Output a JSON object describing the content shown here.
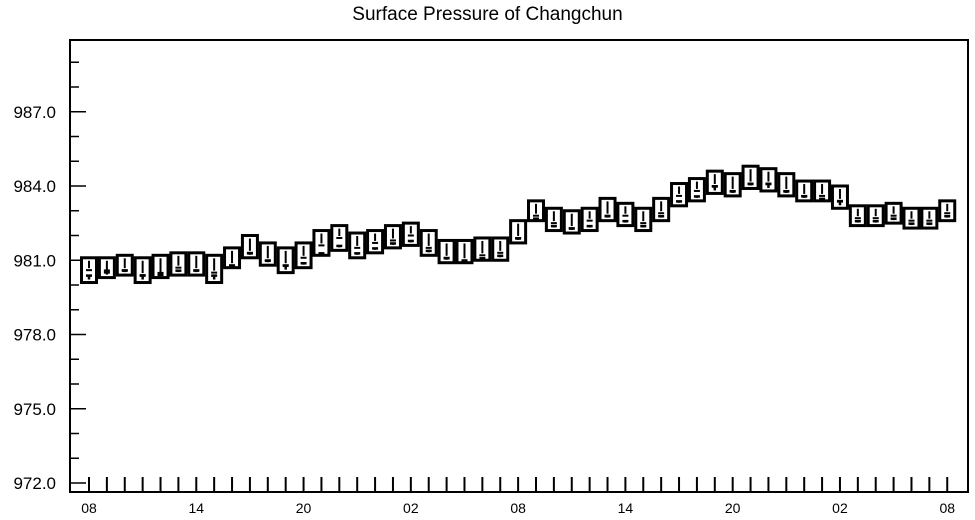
{
  "chart_data": {
    "type": "boxplot",
    "title": "Surface Pressure of Changchun",
    "xlabel": "",
    "ylabel": "",
    "ylim": [
      972.0,
      990.0
    ],
    "y_tick_labels": [
      "972.0",
      "975.0",
      "978.0",
      "981.0",
      "984.0",
      "987.0"
    ],
    "y_ticks": [
      972,
      975,
      978,
      981,
      984,
      987
    ],
    "x_tick_labels": [
      "08",
      "14",
      "20",
      "02",
      "08",
      "14",
      "20",
      "02",
      "08"
    ],
    "x_tick_hours": [
      0,
      6,
      12,
      18,
      24,
      30,
      36,
      42,
      48
    ],
    "x_range_hours": [
      -0.5,
      49.5
    ],
    "grid": false,
    "series": [
      {
        "x_hours": [
          0,
          1,
          2,
          3,
          4,
          5,
          6,
          7,
          8,
          9,
          10,
          11,
          12,
          13,
          14,
          15,
          16,
          17,
          18,
          19,
          20,
          21,
          22,
          23,
          24,
          25,
          26,
          27,
          28,
          29,
          30,
          31,
          32,
          33,
          34,
          35,
          36,
          37,
          38,
          39,
          40,
          41,
          42,
          43,
          44,
          45,
          46,
          47,
          48
        ],
        "box_high": [
          981.1,
          981.1,
          981.2,
          981.1,
          981.2,
          981.3,
          981.3,
          981.2,
          981.5,
          982.0,
          981.7,
          981.5,
          981.7,
          982.2,
          982.4,
          982.1,
          982.2,
          982.4,
          982.5,
          982.2,
          981.8,
          981.8,
          981.9,
          981.9,
          982.6,
          983.4,
          983.1,
          983.0,
          983.1,
          983.5,
          983.3,
          983.1,
          983.5,
          984.1,
          984.3,
          984.6,
          984.5,
          984.8,
          984.7,
          984.5,
          984.2,
          984.2,
          984.0,
          983.2,
          983.2,
          983.3,
          983.1,
          983.1,
          983.4
        ],
        "box_low": [
          980.1,
          980.3,
          980.4,
          980.1,
          980.3,
          980.4,
          980.4,
          980.1,
          980.7,
          981.1,
          980.8,
          980.5,
          980.7,
          981.2,
          981.4,
          981.1,
          981.3,
          981.5,
          981.6,
          981.2,
          980.9,
          980.9,
          981.0,
          981.0,
          981.7,
          982.6,
          982.2,
          982.1,
          982.2,
          982.6,
          982.4,
          982.2,
          982.6,
          983.2,
          983.4,
          983.7,
          983.6,
          983.9,
          983.8,
          983.6,
          983.4,
          983.4,
          983.1,
          982.4,
          982.4,
          982.5,
          982.3,
          982.3,
          982.6
        ],
        "median": [
          980.6,
          980.5,
          980.6,
          980.4,
          980.4,
          980.7,
          980.6,
          980.5,
          980.8,
          981.3,
          981.0,
          980.8,
          981.1,
          981.6,
          981.9,
          981.5,
          981.7,
          981.8,
          982.0,
          981.5,
          981.1,
          981.0,
          981.2,
          981.3,
          981.9,
          982.8,
          982.5,
          982.3,
          982.6,
          982.8,
          982.8,
          982.5,
          982.9,
          983.6,
          983.8,
          984.0,
          983.8,
          984.1,
          984.1,
          983.8,
          983.6,
          983.6,
          983.4,
          982.7,
          982.7,
          982.8,
          982.6,
          982.6,
          982.9
        ],
        "mean": [
          980.5,
          980.7,
          980.7,
          980.5,
          980.6,
          980.7,
          980.7,
          980.5,
          980.9,
          981.4,
          981.1,
          980.9,
          981.0,
          981.4,
          981.7,
          981.4,
          981.6,
          981.8,
          981.9,
          981.5,
          981.2,
          981.1,
          981.2,
          981.3,
          982.0,
          982.8,
          982.5,
          982.4,
          982.5,
          982.9,
          982.7,
          982.5,
          982.9,
          983.5,
          983.7,
          984.1,
          983.9,
          984.2,
          984.2,
          983.9,
          983.7,
          983.6,
          983.5,
          982.7,
          982.7,
          982.8,
          982.6,
          982.6,
          982.9
        ]
      }
    ]
  }
}
